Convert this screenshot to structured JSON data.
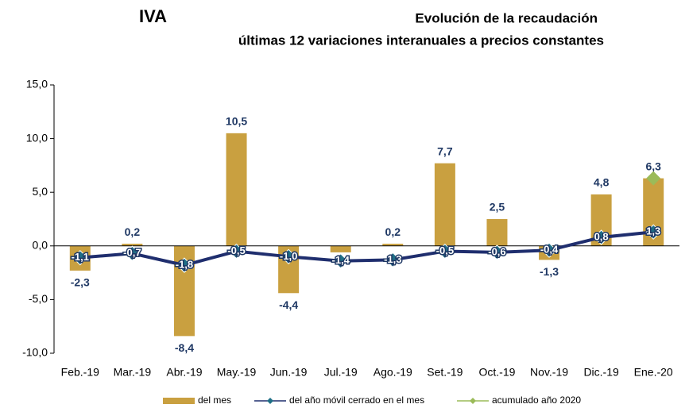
{
  "chart_data": {
    "type": "bar-line",
    "title": "IVA",
    "subtitle": "Evolución de la recaudación",
    "subtitle2": "últimas 12 variaciones interanuales a precios constantes",
    "categories": [
      "Feb.-19",
      "Mar.-19",
      "Abr.-19",
      "May.-19",
      "Jun.-19",
      "Jul.-19",
      "Ago.-19",
      "Set.-19",
      "Oct.-19",
      "Nov.-19",
      "Dic.-19",
      "Ene.-20"
    ],
    "series": [
      {
        "name": "del mes",
        "kind": "bar",
        "color": "#c9a040",
        "values": [
          -2.3,
          0.2,
          -8.4,
          10.5,
          -4.4,
          -0.6,
          0.2,
          7.7,
          2.5,
          -1.3,
          4.8,
          6.3
        ],
        "value_labels": [
          "-2,3",
          "0,2",
          "-8,4",
          "10,5",
          "-4,4",
          null,
          "0,2",
          "7,7",
          "2,5",
          "-1,3",
          "4,8",
          "6,3"
        ]
      },
      {
        "name": "del año móvil cerrado en el mes",
        "kind": "line",
        "color": "#1f2e6e",
        "marker_color": "#1f6f86",
        "values": [
          -1.1,
          -0.7,
          -1.8,
          -0.5,
          -1.0,
          -1.4,
          -1.3,
          -0.5,
          -0.6,
          -0.4,
          0.8,
          1.3
        ],
        "value_labels": [
          "-1,1",
          "-0,7",
          "-1,8",
          "-0,5",
          "-1,0",
          "-1,4",
          "-1,3",
          "-0,5",
          "-0,6",
          "-0,4",
          "0,8",
          "1,3"
        ]
      },
      {
        "name": "acumulado año 2020",
        "kind": "point",
        "color": "#9bbb59",
        "values": [
          null,
          null,
          null,
          null,
          null,
          null,
          null,
          null,
          null,
          null,
          null,
          6.3
        ]
      }
    ],
    "ylim": [
      -10,
      15
    ],
    "yticks": [
      {
        "value": -10,
        "label": "-10,0"
      },
      {
        "value": -5,
        "label": "-5,0"
      },
      {
        "value": 0,
        "label": "0,0"
      },
      {
        "value": 5,
        "label": "5,0"
      },
      {
        "value": 10,
        "label": "10,0"
      },
      {
        "value": 15,
        "label": "15,0"
      }
    ],
    "legend": "bottom"
  }
}
